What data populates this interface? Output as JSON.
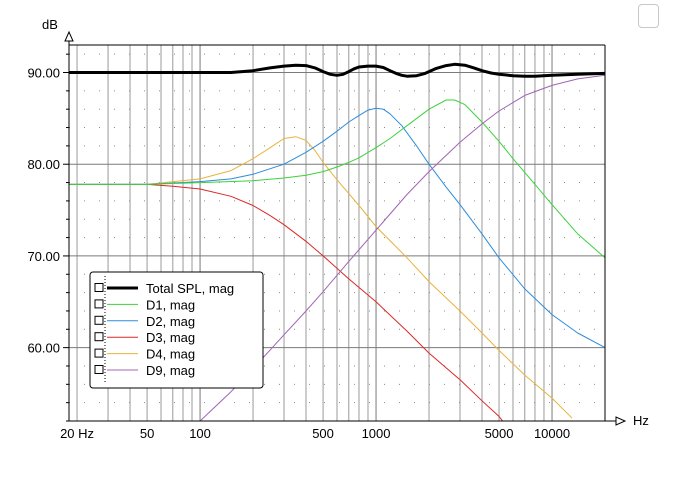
{
  "chart_data": {
    "type": "line",
    "xlabel": "Hz",
    "ylabel": "dB",
    "xscale": "log",
    "xlim": [
      18,
      20000
    ],
    "ylim": [
      52,
      93
    ],
    "grid": true,
    "legend_position": "bottom-left",
    "x_tick_labels": [
      "20 Hz",
      "50",
      "100",
      "500",
      "1000",
      "5000",
      "10000"
    ],
    "x_ticks": [
      20,
      50,
      100,
      500,
      1000,
      5000,
      10000
    ],
    "y_ticks": [
      60,
      70,
      80,
      90
    ],
    "y_tick_labels": [
      "60.00",
      "70.00",
      "80.00",
      "90.00"
    ],
    "series": [
      {
        "name": "Total SPL, mag",
        "color": "#000000",
        "width": 3,
        "x": [
          18,
          50,
          100,
          150,
          200,
          250,
          300,
          350,
          400,
          450,
          500,
          550,
          600,
          650,
          700,
          750,
          800,
          900,
          1000,
          1100,
          1200,
          1300,
          1400,
          1500,
          1700,
          1900,
          2000,
          2200,
          2500,
          2800,
          3200,
          3600,
          4000,
          4500,
          5000,
          6000,
          7000,
          8000,
          10000,
          14000,
          20000
        ],
        "y": [
          90.0,
          90.0,
          90.0,
          90.0,
          90.2,
          90.5,
          90.7,
          90.8,
          90.75,
          90.5,
          90.1,
          89.8,
          89.7,
          89.8,
          90.1,
          90.4,
          90.6,
          90.7,
          90.7,
          90.55,
          90.2,
          89.9,
          89.7,
          89.6,
          89.65,
          89.9,
          90.1,
          90.45,
          90.75,
          90.9,
          90.8,
          90.5,
          90.2,
          89.95,
          89.8,
          89.65,
          89.6,
          89.6,
          89.7,
          89.8,
          89.9
        ]
      },
      {
        "name": "D1, mag",
        "color": "#3cd23c",
        "width": 1,
        "x": [
          18,
          50,
          100,
          200,
          300,
          400,
          500,
          600,
          700,
          800,
          1000,
          1200,
          1500,
          2000,
          2500,
          2800,
          3200,
          4000,
          5000,
          6000,
          8000,
          10000,
          14000,
          20000
        ],
        "y": [
          77.8,
          77.8,
          78.0,
          78.2,
          78.5,
          78.8,
          79.2,
          79.7,
          80.2,
          80.7,
          81.8,
          82.8,
          84.2,
          86.0,
          87.0,
          87.0,
          86.5,
          84.6,
          82.5,
          80.6,
          77.8,
          75.6,
          72.4,
          69.8
        ]
      },
      {
        "name": "D2, mag",
        "color": "#2d8cdc",
        "width": 1,
        "x": [
          18,
          50,
          100,
          150,
          200,
          300,
          400,
          500,
          600,
          700,
          800,
          900,
          1000,
          1100,
          1200,
          1400,
          1700,
          2000,
          2500,
          3000,
          4000,
          5000,
          7000,
          10000,
          14000,
          20000
        ],
        "y": [
          77.8,
          77.8,
          78.1,
          78.4,
          78.9,
          80.0,
          81.3,
          82.5,
          83.6,
          84.6,
          85.3,
          85.9,
          86.1,
          86.0,
          85.5,
          84.2,
          82.0,
          80.0,
          77.5,
          75.6,
          72.4,
          69.8,
          66.4,
          63.6,
          61.6,
          60.0
        ]
      },
      {
        "name": "D3, mag",
        "color": "#dc2828",
        "width": 1,
        "x": [
          18,
          50,
          70,
          100,
          150,
          200,
          250,
          300,
          400,
          500,
          700,
          1000,
          1500,
          2000,
          3000,
          4000,
          5000,
          5500
        ],
        "y": [
          77.8,
          77.8,
          77.6,
          77.3,
          76.5,
          75.5,
          74.4,
          73.4,
          71.6,
          70.0,
          67.5,
          65.0,
          61.8,
          59.4,
          56.5,
          54.2,
          52.5,
          51.5
        ]
      },
      {
        "name": "D4, mag",
        "color": "#e6b43c",
        "width": 1,
        "x": [
          18,
          50,
          100,
          150,
          200,
          250,
          300,
          350,
          400,
          450,
          500,
          600,
          700,
          800,
          1000,
          1500,
          2000,
          3000,
          4000,
          5000,
          7000,
          10000,
          13000
        ],
        "y": [
          77.8,
          77.8,
          78.4,
          79.3,
          80.6,
          81.8,
          82.8,
          83.0,
          82.6,
          81.5,
          80.2,
          78.3,
          76.8,
          75.5,
          73.2,
          69.8,
          67.2,
          64.0,
          61.6,
          59.7,
          57.0,
          54.5,
          52.3
        ]
      },
      {
        "name": "D9, mag",
        "color": "#a064b4",
        "width": 1,
        "x": [
          100,
          150,
          200,
          300,
          400,
          500,
          700,
          1000,
          1500,
          2000,
          3000,
          4000,
          5000,
          7000,
          10000,
          14000,
          20000
        ],
        "y": [
          52.0,
          55.2,
          57.7,
          61.4,
          64.0,
          66.1,
          69.4,
          72.8,
          76.7,
          79.2,
          82.4,
          84.4,
          85.8,
          87.5,
          88.6,
          89.3,
          89.7
        ]
      }
    ]
  },
  "icons": {
    "legend_checkbox": "checkbox-icon",
    "corner": "rounded-box-icon"
  }
}
